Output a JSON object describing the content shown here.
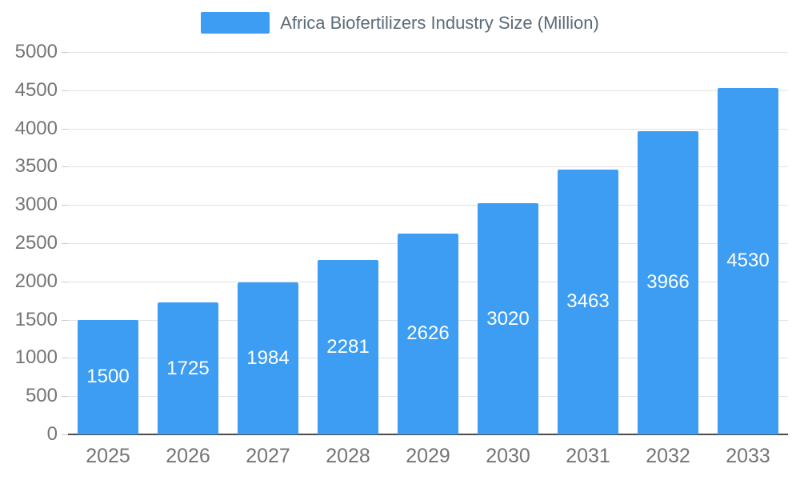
{
  "chart_data": {
    "type": "bar",
    "title": "Africa Biofertilizers Industry Size (Million)",
    "categories": [
      "2025",
      "2026",
      "2027",
      "2028",
      "2029",
      "2030",
      "2031",
      "2032",
      "2033"
    ],
    "values": [
      1500,
      1725,
      1984,
      2281,
      2626,
      3020,
      3463,
      3966,
      4530
    ],
    "xlabel": "",
    "ylabel": "",
    "ylim": [
      0,
      5000
    ],
    "ytick_step": 500,
    "grid": true,
    "legend_position": "top",
    "bar_color": "#3d9df3",
    "bar_label_color": "#ffffff",
    "axis_text_color": "#757575",
    "title_text_color": "#5b6b79"
  }
}
